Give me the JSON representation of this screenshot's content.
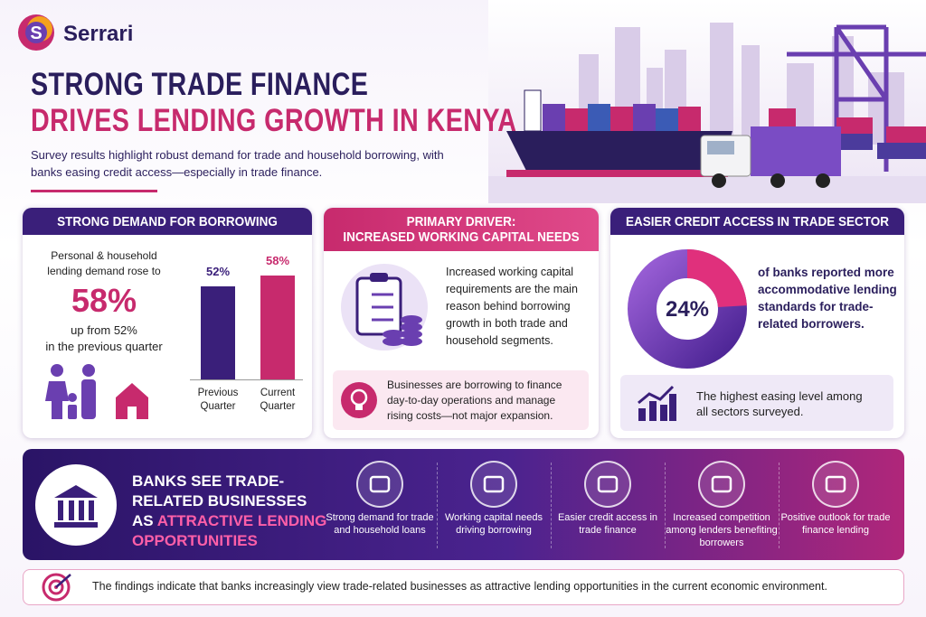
{
  "brand": "Serrari",
  "header": {
    "title_line1": "STRONG TRADE FINANCE",
    "title_line2": "DRIVES LENDING GROWTH IN KENYA",
    "subtitle": "Survey results highlight robust demand for trade and household borrowing, with banks easing credit access—especially in trade finance."
  },
  "panel1": {
    "title": "STRONG DEMAND FOR BORROWING",
    "intro": "Personal & household lending demand rose to",
    "big_value": "58%",
    "from_text": "up from 52%",
    "period_text": "in the previous quarter",
    "chart": {
      "categories": [
        "Previous Quarter",
        "Current Quarter"
      ],
      "values": [
        52,
        58
      ],
      "value_labels": [
        "52%",
        "58%"
      ]
    }
  },
  "panel2": {
    "title_line1": "PRIMARY DRIVER:",
    "title_line2": "INCREASED WORKING CAPITAL NEEDS",
    "body": "Increased working capital requirements are the main reason behind borrowing growth in both trade and household segments.",
    "note": "Businesses are borrowing to finance day-to-day operations and manage rising costs—not major expansion."
  },
  "panel3": {
    "title": "EASIER CREDIT ACCESS IN TRADE SECTOR",
    "donut": {
      "value": 24,
      "value_label": "24%"
    },
    "body": "of banks reported more accommodative lending standards for trade-related borrowers.",
    "note": "The highest easing level among all sectors surveyed."
  },
  "banner": {
    "title": "BANKS SEE TRADE-RELATED BUSINESSES AS",
    "highlight": "ATTRACTIVE LENDING OPPORTUNITIES",
    "items": [
      "Strong demand for trade and household loans",
      "Working capital needs driving borrowing",
      "Easier credit access in trade finance",
      "Increased competition among lenders benefiting borrowers",
      "Positive outlook for trade finance lending"
    ]
  },
  "footer": "The findings indicate that banks increasingly view trade-related businesses as attractive lending opportunities in the current economic environment."
}
